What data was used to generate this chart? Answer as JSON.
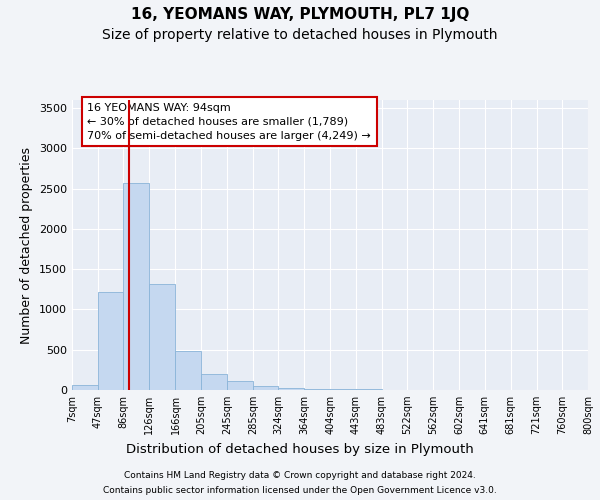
{
  "title": "16, YEOMANS WAY, PLYMOUTH, PL7 1JQ",
  "subtitle": "Size of property relative to detached houses in Plymouth",
  "xlabel": "Distribution of detached houses by size in Plymouth",
  "ylabel": "Number of detached properties",
  "footer_line1": "Contains HM Land Registry data © Crown copyright and database right 2024.",
  "footer_line2": "Contains public sector information licensed under the Open Government Licence v3.0.",
  "annotation_line1": "16 YEOMANS WAY: 94sqm",
  "annotation_line2": "← 30% of detached houses are smaller (1,789)",
  "annotation_line3": "70% of semi-detached houses are larger (4,249) →",
  "bar_edges": [
    7,
    47,
    86,
    126,
    166,
    205,
    245,
    285,
    324,
    364,
    404,
    443,
    483,
    522,
    562,
    602,
    641,
    681,
    721,
    760,
    800
  ],
  "bar_heights": [
    60,
    1220,
    2570,
    1320,
    480,
    200,
    110,
    55,
    30,
    15,
    10,
    8,
    6,
    5,
    4,
    3,
    3,
    2,
    2,
    2
  ],
  "bar_color": "#c5d8f0",
  "bar_edgecolor": "#8ab4d8",
  "vline_color": "#cc0000",
  "vline_x": 94,
  "ylim": [
    0,
    3600
  ],
  "yticks": [
    0,
    500,
    1000,
    1500,
    2000,
    2500,
    3000,
    3500
  ],
  "bg_color": "#f2f4f8",
  "plot_bg_color": "#e8edf5",
  "grid_color": "#ffffff",
  "title_fontsize": 11,
  "subtitle_fontsize": 10,
  "xlabel_fontsize": 9.5,
  "ylabel_fontsize": 9,
  "tick_fontsize": 8,
  "annotation_box_edgecolor": "#cc0000",
  "annotation_fontsize": 8
}
